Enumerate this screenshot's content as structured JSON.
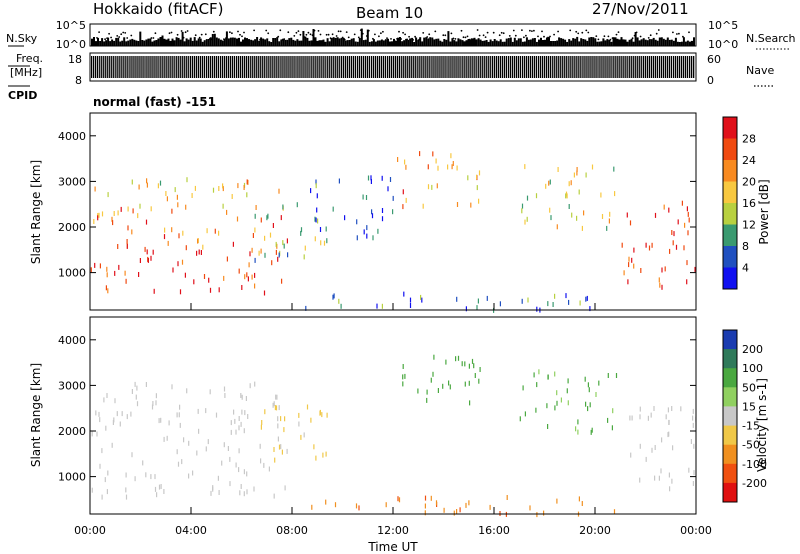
{
  "header": {
    "station": "Hokkaido (fitACF)",
    "beam": "Beam 10",
    "date": "27/Nov/2011"
  },
  "strip_labels": {
    "nsky": "N.Sky",
    "freq_line1": "Freq.",
    "freq_line2": "[MHz]",
    "cpid": "CPID",
    "nsearch": "N.Search",
    "nave": "Nave",
    "mode": "normal (fast) -151"
  },
  "chart_data": [
    {
      "type": "line",
      "name": "noise-sky-strip",
      "ylabel": "N.Sky",
      "yticks": [
        "10^5",
        "10^0"
      ],
      "right_label": "N.Search",
      "right_yticks": [
        "10^5",
        "10^0"
      ]
    },
    {
      "type": "bar",
      "name": "frequency-nave-strip",
      "ylabel": "Freq. [MHz]",
      "yticks": [
        18,
        8
      ],
      "ylim": [
        8,
        18
      ],
      "right_label": "Nave",
      "right_yticks": [
        60,
        0
      ]
    },
    {
      "type": "heatmap",
      "name": "power-panel",
      "ylabel": "Slant Range [km]",
      "yticks": [
        1000,
        2000,
        3000,
        4000
      ],
      "ylim": [
        180,
        4500
      ],
      "xlim": [
        0,
        24
      ],
      "colorbar": {
        "label": "Power [dB]",
        "tick_labels": [
          "28",
          "24",
          "20",
          "16",
          "12",
          "8",
          "4"
        ],
        "colors": [
          "#e0101a",
          "#f04a10",
          "#f88a20",
          "#f8c840",
          "#b8d040",
          "#3a9a70",
          "#2050c0",
          "#1010f0"
        ]
      },
      "regions": [
        {
          "t": [
            0,
            7.8
          ],
          "r": [
            600,
            1600
          ],
          "v": 28
        },
        {
          "t": [
            0,
            7.8
          ],
          "r": [
            1600,
            2500
          ],
          "v": 24
        },
        {
          "t": [
            0,
            7.5
          ],
          "r": [
            2500,
            3100
          ],
          "v": 18
        },
        {
          "t": [
            6.5,
            9.5
          ],
          "r": [
            1300,
            2600
          ],
          "v": 12
        },
        {
          "t": [
            8.5,
            12
          ],
          "r": [
            1800,
            3200
          ],
          "v": 6
        },
        {
          "t": [
            12,
            15.5
          ],
          "r": [
            2500,
            3700
          ],
          "v": 22
        },
        {
          "t": [
            17,
            21
          ],
          "r": [
            2000,
            3400
          ],
          "v": 16
        },
        {
          "t": [
            21,
            24
          ],
          "r": [
            700,
            2600
          ],
          "v": 28
        },
        {
          "t": [
            8.5,
            21
          ],
          "r": [
            220,
            600
          ],
          "v": 8
        }
      ]
    },
    {
      "type": "heatmap",
      "name": "velocity-panel",
      "ylabel": "Slant Range [km]",
      "xlabel": "Time UT",
      "yticks": [
        1000,
        2000,
        3000,
        4000
      ],
      "ylim": [
        180,
        4500
      ],
      "xticks": [
        "00:00",
        "04:00",
        "08:00",
        "12:00",
        "16:00",
        "20:00",
        "00:00"
      ],
      "xlim": [
        0,
        24
      ],
      "colorbar": {
        "label": "Velocity [m s-1]",
        "tick_labels": [
          "200",
          "100",
          "50",
          "15",
          "-15",
          "-50",
          "-100",
          "-200"
        ],
        "colors": [
          "#1a3cb0",
          "#2f7a5a",
          "#4aa840",
          "#90d060",
          "#c8c8c8",
          "#f0c848",
          "#f09020",
          "#f05010",
          "#e01010"
        ]
      },
      "regions": [
        {
          "t": [
            0,
            7.8
          ],
          "r": [
            600,
            2500
          ],
          "v": 0
        },
        {
          "t": [
            0,
            7.5
          ],
          "r": [
            2500,
            3100
          ],
          "v": -5
        },
        {
          "t": [
            6.5,
            9.5
          ],
          "r": [
            1300,
            2600
          ],
          "v": -20
        },
        {
          "t": [
            12,
            15.5
          ],
          "r": [
            2500,
            3700
          ],
          "v": 40
        },
        {
          "t": [
            17,
            21
          ],
          "r": [
            2000,
            3400
          ],
          "v": 35
        },
        {
          "t": [
            21,
            24
          ],
          "r": [
            700,
            2600
          ],
          "v": 0
        },
        {
          "t": [
            8.5,
            21
          ],
          "r": [
            220,
            600
          ],
          "v": -70
        }
      ]
    }
  ]
}
